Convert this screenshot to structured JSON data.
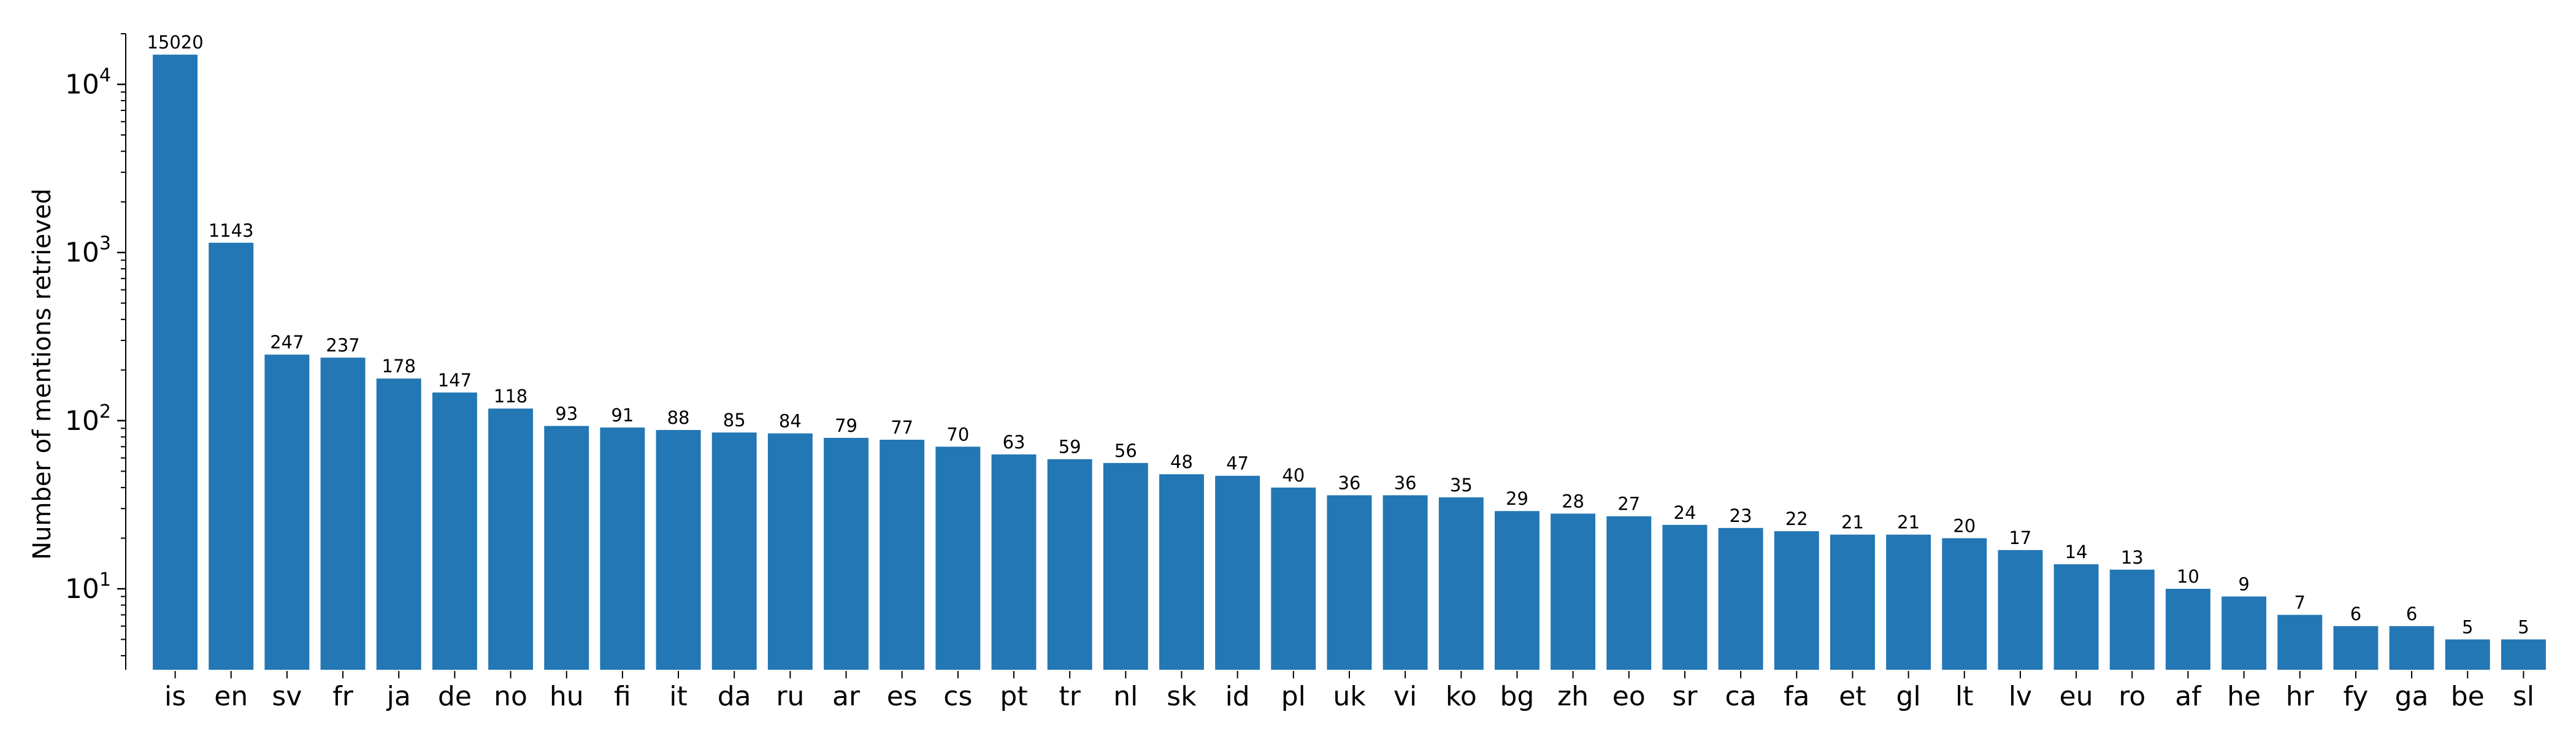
{
  "chart_data": {
    "type": "bar",
    "categories": [
      "is",
      "en",
      "sv",
      "fr",
      "ja",
      "de",
      "no",
      "hu",
      "fi",
      "it",
      "da",
      "ru",
      "ar",
      "es",
      "cs",
      "pt",
      "tr",
      "nl",
      "sk",
      "id",
      "pl",
      "uk",
      "vi",
      "ko",
      "bg",
      "zh",
      "eo",
      "sr",
      "ca",
      "fa",
      "et",
      "gl",
      "lt",
      "lv",
      "eu",
      "ro",
      "af",
      "he",
      "hr",
      "fy",
      "ga",
      "be",
      "sl"
    ],
    "values": [
      15020,
      1143,
      247,
      237,
      178,
      147,
      118,
      93,
      91,
      88,
      85,
      84,
      79,
      77,
      70,
      63,
      59,
      56,
      48,
      47,
      40,
      36,
      36,
      35,
      29,
      28,
      27,
      24,
      23,
      22,
      21,
      21,
      20,
      17,
      14,
      13,
      10,
      9,
      7,
      6,
      6,
      5,
      5
    ],
    "ylabel": "Number of mentions retrieved",
    "xlabel": "",
    "yscale": "log",
    "ylim": [
      3.3,
      20000
    ],
    "ytick_labels": [
      {
        "base": "10",
        "exp": "1",
        "value": 10
      },
      {
        "base": "10",
        "exp": "2",
        "value": 100
      },
      {
        "base": "10",
        "exp": "3",
        "value": 1000
      },
      {
        "base": "10",
        "exp": "4",
        "value": 10000
      }
    ],
    "bar_color": "#2377b4",
    "grid": false,
    "legend": "none"
  }
}
